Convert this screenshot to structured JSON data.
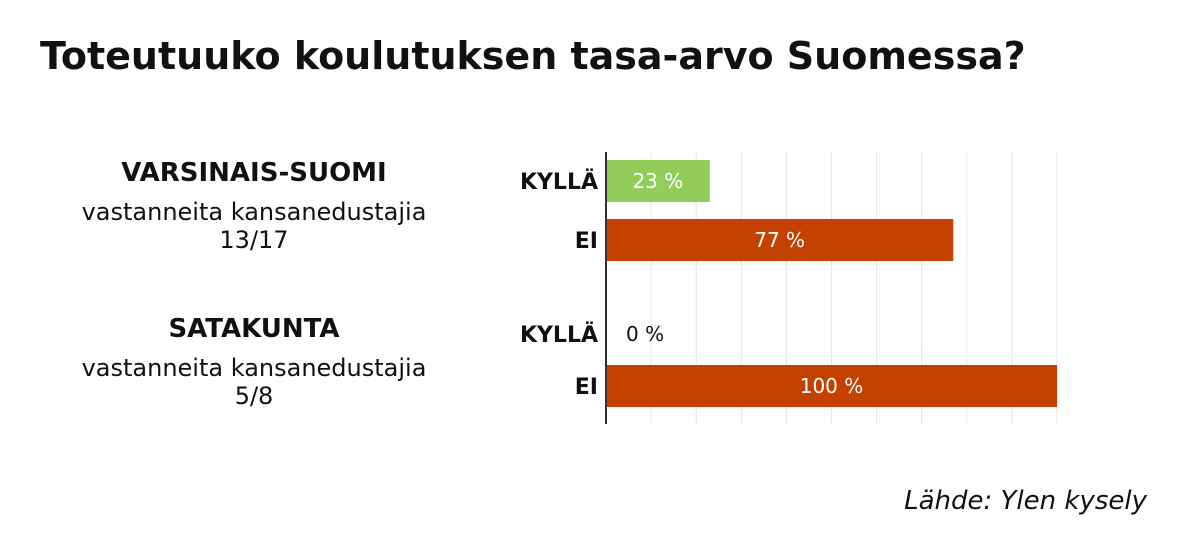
{
  "title": "Toteutuuko koulutuksen tasa-arvo Suomessa?",
  "source": "Lähde: Ylen kysely",
  "colors": {
    "yes": "#94cc5c",
    "no": "#c44100",
    "grid": "#e6e6e6",
    "axis": "#333333"
  },
  "regions": [
    {
      "name": "VARSINAIS-SUOMI",
      "subtitle": "vastanneita kansanedustajia",
      "count": "13/17"
    },
    {
      "name": "SATAKUNTA",
      "subtitle": "vastanneita kansanedustajia",
      "count": "5/8"
    }
  ],
  "chart_data": {
    "type": "bar",
    "orientation": "horizontal",
    "xlim": [
      0,
      100
    ],
    "grid": true,
    "groups": [
      {
        "region": "VARSINAIS-SUOMI",
        "bars": [
          {
            "label": "KYLLÄ",
            "value": 23,
            "value_label": "23 %"
          },
          {
            "label": "EI",
            "value": 77,
            "value_label": "77 %"
          }
        ]
      },
      {
        "region": "SATAKUNTA",
        "bars": [
          {
            "label": "KYLLÄ",
            "value": 0,
            "value_label": "0 %"
          },
          {
            "label": "EI",
            "value": 100,
            "value_label": "100 %"
          }
        ]
      }
    ]
  }
}
